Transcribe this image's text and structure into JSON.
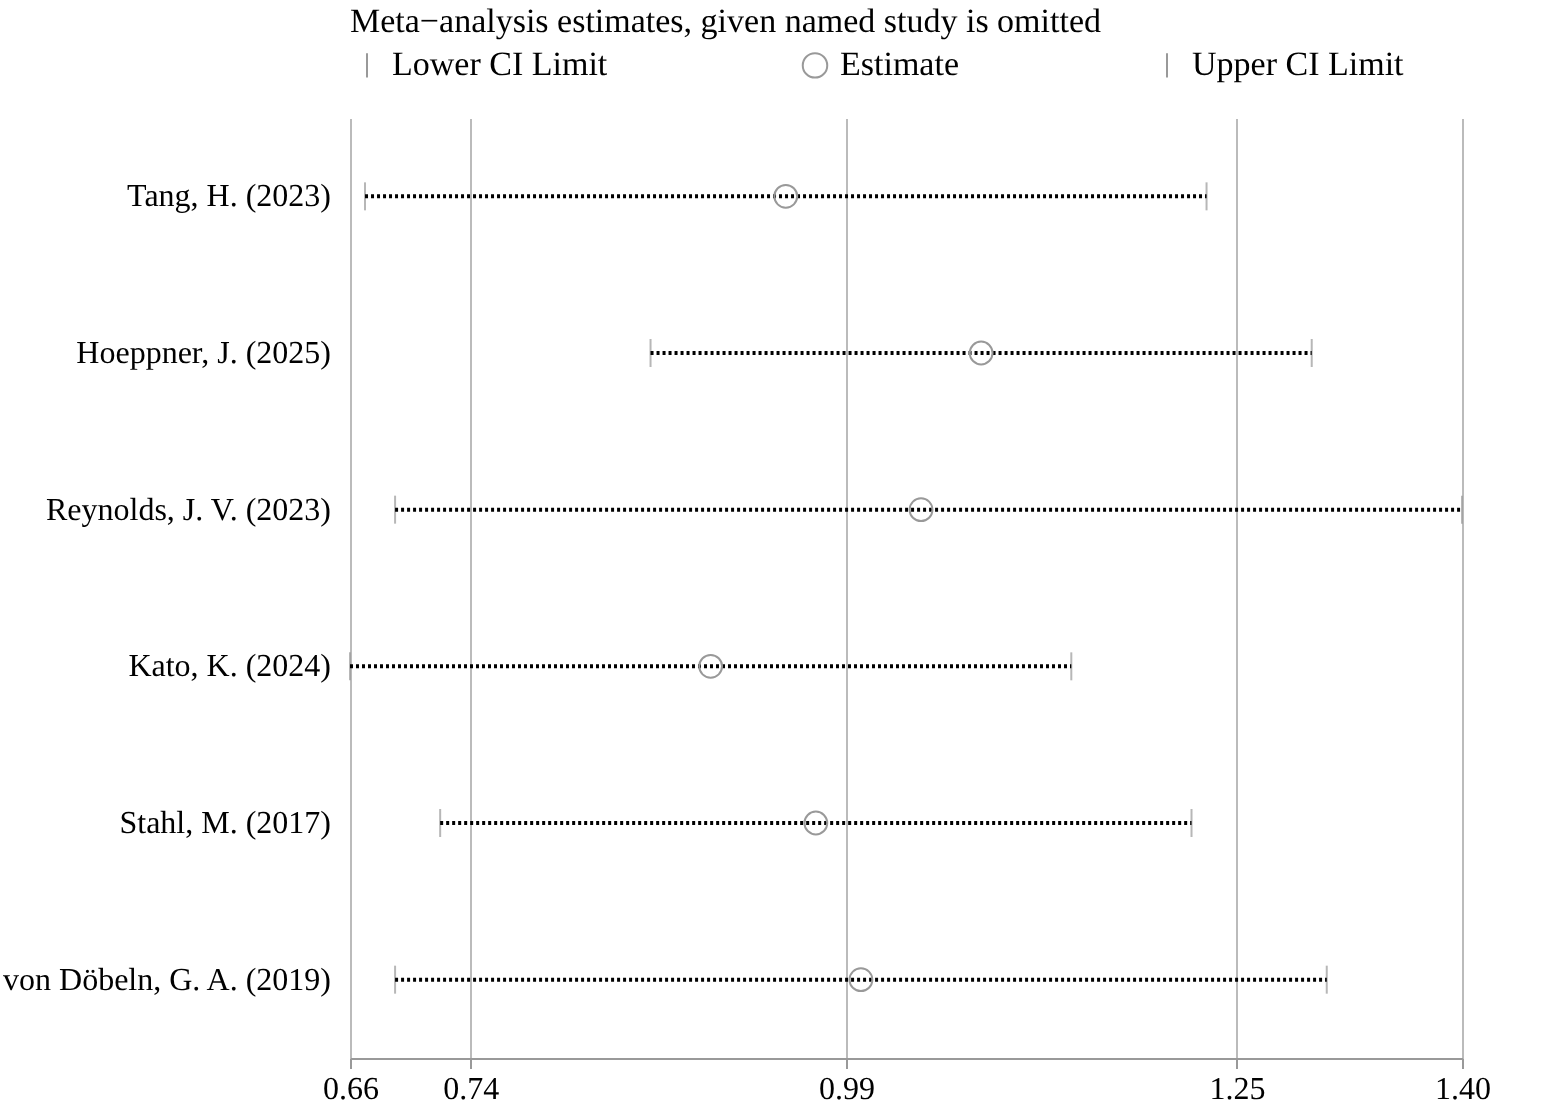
{
  "chart_data": {
    "type": "scatter",
    "orientation": "horizontal",
    "title": "Meta−analysis estimates, given named study is omitted",
    "categories": [
      "Tang, H. (2023)",
      "Hoeppner, J. (2025)",
      "Reynolds, J. V. (2023)",
      "Kato, K. (2024)",
      "Stahl, M. (2017)",
      "von Döbeln, G. A. (2019)"
    ],
    "series": [
      {
        "name": "Estimate",
        "color": "#999999",
        "marker": "circle",
        "values": [
          0.95,
          1.08,
          1.04,
          0.9,
          0.97,
          1.0
        ],
        "errors": [
          [
            0.67,
            1.23
          ],
          [
            0.86,
            1.3
          ],
          [
            0.69,
            1.4
          ],
          [
            0.66,
            1.14
          ],
          [
            0.72,
            1.22
          ],
          [
            0.69,
            1.31
          ]
        ]
      }
    ],
    "annotations": [
      "Lower CI Limit",
      "Upper CI Limit"
    ],
    "line_style": "dotted",
    "xlim": [
      0.66,
      1.4
    ],
    "xticks": [
      0.66,
      0.74,
      0.99,
      1.25,
      {
        "value": 1.4,
        "label": "1.40"
      }
    ],
    "grid": "x",
    "legend": "top"
  }
}
